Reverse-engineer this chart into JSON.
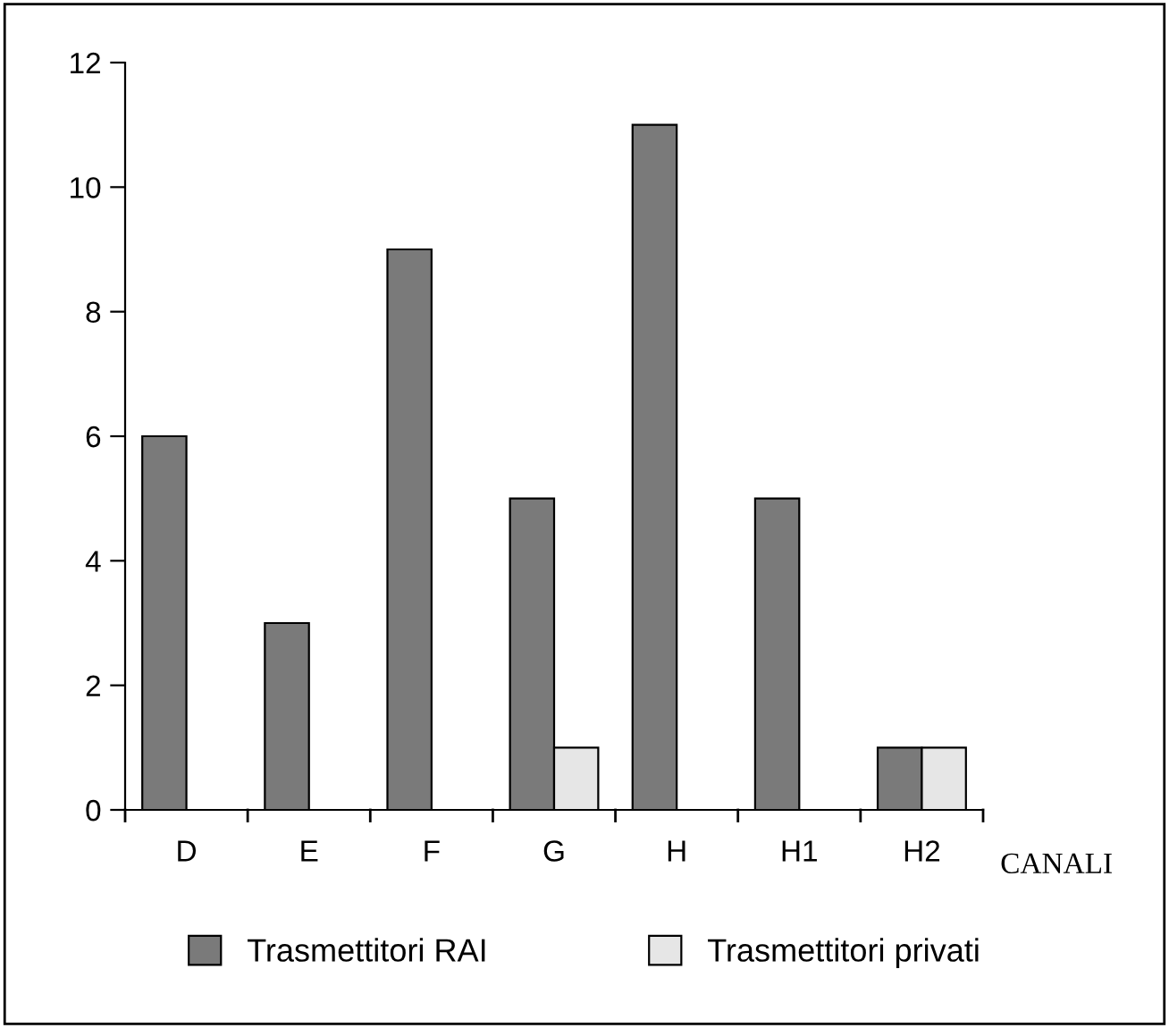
{
  "chart_data": {
    "type": "bar",
    "xlabel": "CANALI",
    "categories": [
      "D",
      "E",
      "F",
      "G",
      "H",
      "H1",
      "H2"
    ],
    "series": [
      {
        "name": "Trasmettitori RAI",
        "color": "#7a7a7a",
        "values": [
          6,
          3,
          9,
          5,
          11,
          5,
          1
        ]
      },
      {
        "name": "Trasmettitori privati",
        "color": "#e6e6e6",
        "values": [
          null,
          null,
          null,
          1,
          null,
          null,
          1
        ]
      }
    ],
    "ylim": [
      0,
      12
    ],
    "yticks": [
      0,
      2,
      4,
      6,
      8,
      10,
      12
    ],
    "grid": false,
    "legend": "bottom"
  }
}
